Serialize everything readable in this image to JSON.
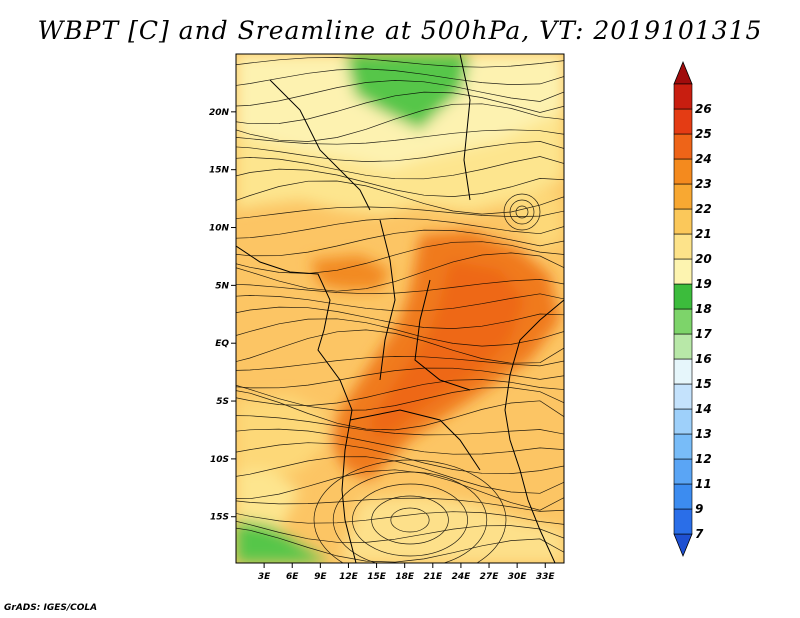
{
  "title": "WBPT [C] and Sreamline at 500hPa, VT: 2019101315",
  "footer": "GrADS: IGES/COLA",
  "lat_ticks": [
    "20N",
    "15N",
    "10N",
    "5N",
    "EQ",
    "5S",
    "10S",
    "15S"
  ],
  "lat_values": [
    20,
    15,
    10,
    5,
    0,
    -5,
    -10,
    -15
  ],
  "lon_ticks": [
    "3E",
    "6E",
    "9E",
    "12E",
    "15E",
    "18E",
    "21E",
    "24E",
    "27E",
    "30E",
    "33E"
  ],
  "lon_values": [
    3,
    6,
    9,
    12,
    15,
    18,
    21,
    24,
    27,
    30,
    33
  ],
  "map_extent": {
    "lon_min": 0,
    "lon_max": 35,
    "lat_min": -19,
    "lat_max": 25
  },
  "colorbar": {
    "labels": [
      "7",
      "9",
      "11",
      "12",
      "13",
      "14",
      "15",
      "16",
      "17",
      "18",
      "19",
      "20",
      "21",
      "22",
      "23",
      "24",
      "25",
      "26"
    ],
    "colors": [
      "#1e50d2",
      "#2a6ee8",
      "#3c8cf0",
      "#5aa5f5",
      "#78bcf8",
      "#9ed0fa",
      "#c4e2fc",
      "#e6f6fb",
      "#b8e8a8",
      "#7dd46a",
      "#3cbc3c",
      "#fdf4b0",
      "#fde38a",
      "#fbc85a",
      "#f8a832",
      "#f48a1e",
      "#ee6418",
      "#e43c14",
      "#c81e10",
      "#a00c0c"
    ]
  }
}
